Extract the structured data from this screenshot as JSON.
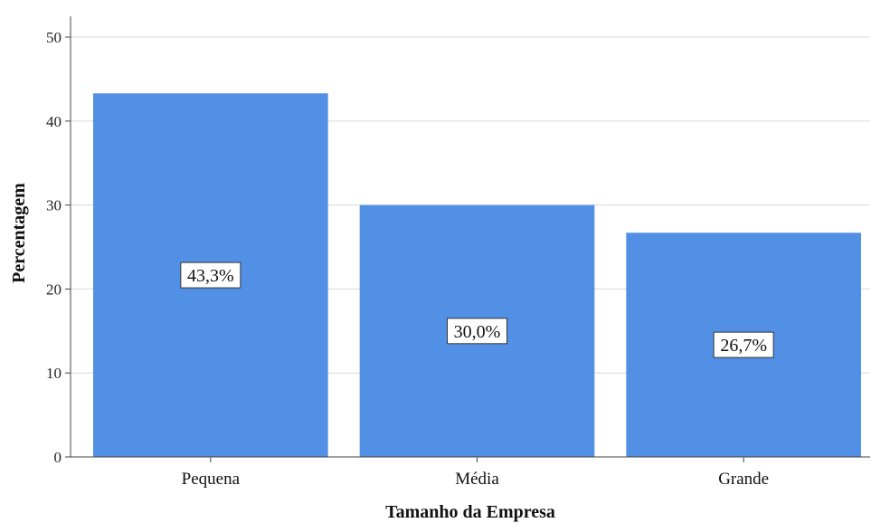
{
  "chart_data": {
    "type": "bar",
    "title": "",
    "xlabel": "Tamanho da Empresa",
    "ylabel": "Percentagem",
    "categories": [
      "Pequena",
      "Média",
      "Grande"
    ],
    "values": [
      43.3,
      30.0,
      26.7
    ],
    "data_labels": [
      "43,3%",
      "30,0%",
      "26,7%"
    ],
    "ylim": [
      0,
      50
    ],
    "yticks": [
      0,
      10,
      20,
      30,
      40,
      50
    ],
    "bar_color": "#5290e6",
    "grid": true,
    "legend": "none"
  }
}
